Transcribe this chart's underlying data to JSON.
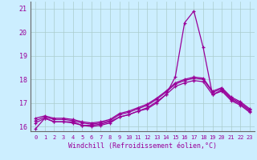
{
  "xlabel": "Windchill (Refroidissement éolien,°C)",
  "background_color": "#cceeff",
  "grid_color": "#aacccc",
  "line_color": "#990099",
  "xlim": [
    -0.5,
    23.5
  ],
  "ylim": [
    15.8,
    21.3
  ],
  "xticks": [
    0,
    1,
    2,
    3,
    4,
    5,
    6,
    7,
    8,
    9,
    10,
    11,
    12,
    13,
    14,
    15,
    16,
    17,
    18,
    19,
    20,
    21,
    22,
    23
  ],
  "yticks": [
    16,
    17,
    18,
    19,
    20,
    21
  ],
  "series": [
    [
      15.9,
      16.35,
      16.2,
      16.2,
      16.2,
      16.05,
      16.05,
      16.1,
      16.2,
      16.4,
      16.5,
      16.65,
      16.75,
      17.0,
      17.35,
      18.1,
      20.4,
      20.9,
      19.35,
      17.35,
      17.55,
      17.15,
      16.95,
      16.65
    ],
    [
      16.15,
      16.35,
      16.2,
      16.2,
      16.15,
      16.05,
      16.0,
      16.05,
      16.15,
      16.4,
      16.5,
      16.65,
      16.8,
      17.05,
      17.35,
      17.7,
      17.85,
      17.95,
      17.9,
      17.35,
      17.5,
      17.1,
      16.9,
      16.6
    ],
    [
      16.25,
      16.4,
      16.3,
      16.3,
      16.25,
      16.15,
      16.1,
      16.15,
      16.25,
      16.5,
      16.6,
      16.75,
      16.9,
      17.15,
      17.45,
      17.8,
      17.95,
      18.05,
      18.0,
      17.45,
      17.6,
      17.2,
      17.0,
      16.7
    ],
    [
      16.35,
      16.45,
      16.35,
      16.35,
      16.3,
      16.2,
      16.15,
      16.2,
      16.3,
      16.55,
      16.65,
      16.8,
      16.95,
      17.2,
      17.5,
      17.85,
      18.0,
      18.1,
      18.05,
      17.5,
      17.65,
      17.25,
      17.05,
      16.75
    ]
  ]
}
